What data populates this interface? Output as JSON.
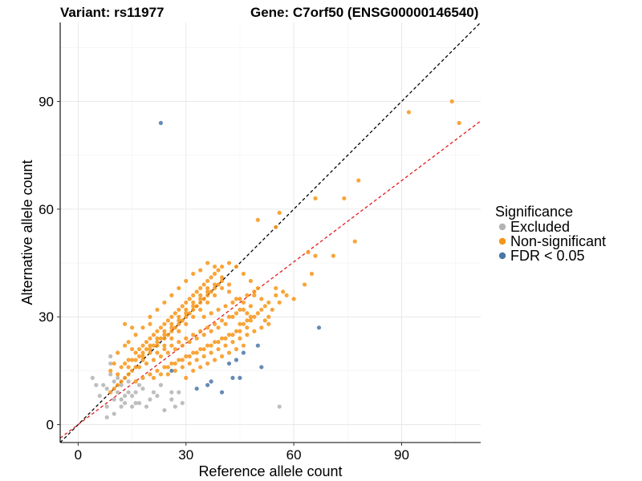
{
  "chart_data": {
    "type": "scatter",
    "variant_title": "Variant: rs11977",
    "gene_title": "Gene: C7orf50 (ENSG00000146540)",
    "xlabel": "Reference allele count",
    "ylabel": "Alternative allele count",
    "xlim": [
      -5,
      112
    ],
    "ylim": [
      -5,
      112
    ],
    "x_ticks": [
      0,
      30,
      60,
      90
    ],
    "y_ticks": [
      0,
      30,
      60,
      90
    ],
    "grid": true,
    "reference_lines": [
      {
        "name": "identity",
        "slope": 1.0,
        "intercept": 0,
        "color": "#000000",
        "style": "dashed"
      },
      {
        "name": "fit",
        "slope": 0.755,
        "intercept": 0,
        "color": "#e31a1c",
        "style": "dashed"
      }
    ],
    "legend": {
      "title": "Significance",
      "placement": "right",
      "entries": [
        {
          "label": "Excluded",
          "color": "#b3b3b3"
        },
        {
          "label": "Non-significant",
          "color": "#f79518"
        },
        {
          "label": "FDR < 0.05",
          "color": "#4a77a8"
        }
      ]
    },
    "series": [
      {
        "name": "Excluded",
        "color": "#b3b3b3",
        "points": [
          [
            4,
            13
          ],
          [
            5,
            11
          ],
          [
            7,
            11
          ],
          [
            8,
            10
          ],
          [
            9,
            14
          ],
          [
            9,
            17
          ],
          [
            9,
            19
          ],
          [
            10,
            12
          ],
          [
            10,
            7
          ],
          [
            8,
            5
          ],
          [
            8,
            2
          ],
          [
            11,
            9
          ],
          [
            11,
            13
          ],
          [
            12,
            11
          ],
          [
            12,
            7
          ],
          [
            13,
            8
          ],
          [
            14,
            9
          ],
          [
            13,
            6
          ],
          [
            15,
            8
          ],
          [
            16,
            9
          ],
          [
            16,
            6
          ],
          [
            18,
            10
          ],
          [
            17,
            6
          ],
          [
            19,
            5
          ],
          [
            20,
            7
          ],
          [
            22,
            8
          ],
          [
            23,
            11
          ],
          [
            24,
            4
          ],
          [
            26,
            7
          ],
          [
            27,
            5
          ],
          [
            28,
            9
          ],
          [
            29,
            6
          ],
          [
            21,
            9
          ],
          [
            14,
            12
          ],
          [
            17,
            11
          ],
          [
            12,
            5
          ],
          [
            15,
            5
          ],
          [
            10,
            3
          ],
          [
            6,
            8
          ],
          [
            56,
            5
          ],
          [
            26,
            9
          ]
        ]
      },
      {
        "name": "Non-significant",
        "color": "#f79518",
        "points": [
          [
            92,
            87
          ],
          [
            104,
            90
          ],
          [
            106,
            84
          ],
          [
            78,
            68
          ],
          [
            74,
            63
          ],
          [
            66,
            63
          ],
          [
            77,
            51
          ],
          [
            56,
            59
          ],
          [
            55,
            55
          ],
          [
            50,
            57
          ],
          [
            64,
            48
          ],
          [
            71,
            47
          ],
          [
            65,
            42
          ],
          [
            66,
            47
          ],
          [
            63,
            39
          ],
          [
            60,
            35
          ],
          [
            58,
            36
          ],
          [
            56,
            34
          ],
          [
            55,
            38
          ],
          [
            54,
            32
          ],
          [
            53,
            30
          ],
          [
            52,
            33
          ],
          [
            51,
            35
          ],
          [
            49,
            36
          ],
          [
            48,
            29
          ],
          [
            47,
            31
          ],
          [
            46,
            28
          ],
          [
            45,
            32
          ],
          [
            44,
            26
          ],
          [
            43,
            30
          ],
          [
            42,
            25
          ],
          [
            41,
            28
          ],
          [
            40,
            24
          ],
          [
            39,
            27
          ],
          [
            38,
            23
          ],
          [
            37,
            26
          ],
          [
            36,
            22
          ],
          [
            35,
            25
          ],
          [
            34,
            21
          ],
          [
            33,
            24
          ],
          [
            32,
            20
          ],
          [
            31,
            23
          ],
          [
            30,
            19
          ],
          [
            29,
            22
          ],
          [
            28,
            18
          ],
          [
            27,
            21
          ],
          [
            26,
            17
          ],
          [
            25,
            20
          ],
          [
            24,
            16
          ],
          [
            23,
            19
          ],
          [
            22,
            15
          ],
          [
            21,
            18
          ],
          [
            20,
            14
          ],
          [
            19,
            17
          ],
          [
            18,
            13
          ],
          [
            17,
            16
          ],
          [
            16,
            12
          ],
          [
            15,
            15
          ],
          [
            14,
            14
          ],
          [
            13,
            13
          ],
          [
            12,
            12
          ],
          [
            11,
            11
          ],
          [
            10,
            10
          ],
          [
            9,
            9
          ],
          [
            12,
            16
          ],
          [
            14,
            18
          ],
          [
            16,
            20
          ],
          [
            18,
            22
          ],
          [
            20,
            24
          ],
          [
            22,
            26
          ],
          [
            24,
            28
          ],
          [
            26,
            30
          ],
          [
            28,
            32
          ],
          [
            30,
            34
          ],
          [
            32,
            36
          ],
          [
            34,
            38
          ],
          [
            36,
            40
          ],
          [
            38,
            42
          ],
          [
            40,
            44
          ],
          [
            42,
            45
          ],
          [
            44,
            44
          ],
          [
            46,
            42
          ],
          [
            48,
            40
          ],
          [
            50,
            38
          ],
          [
            20,
            30
          ],
          [
            22,
            32
          ],
          [
            24,
            34
          ],
          [
            26,
            36
          ],
          [
            28,
            38
          ],
          [
            30,
            40
          ],
          [
            32,
            42
          ],
          [
            34,
            43
          ],
          [
            36,
            45
          ],
          [
            38,
            44
          ],
          [
            40,
            41
          ],
          [
            42,
            39
          ],
          [
            14,
            23
          ],
          [
            16,
            25
          ],
          [
            18,
            27
          ],
          [
            20,
            28
          ],
          [
            15,
            27
          ],
          [
            13,
            28
          ],
          [
            24,
            22
          ],
          [
            26,
            24
          ],
          [
            28,
            26
          ],
          [
            30,
            28
          ],
          [
            32,
            30
          ],
          [
            34,
            32
          ],
          [
            36,
            34
          ],
          [
            38,
            36
          ],
          [
            40,
            38
          ],
          [
            42,
            37
          ],
          [
            44,
            35
          ],
          [
            46,
            34
          ],
          [
            48,
            33
          ],
          [
            50,
            31
          ],
          [
            52,
            29
          ],
          [
            25,
            14
          ],
          [
            27,
            15
          ],
          [
            29,
            16
          ],
          [
            31,
            17
          ],
          [
            33,
            18
          ],
          [
            35,
            19
          ],
          [
            37,
            20
          ],
          [
            39,
            21
          ],
          [
            41,
            22
          ],
          [
            43,
            23
          ],
          [
            45,
            24
          ],
          [
            47,
            25
          ],
          [
            49,
            26
          ],
          [
            51,
            27
          ],
          [
            53,
            28
          ],
          [
            30,
            13
          ],
          [
            32,
            15
          ],
          [
            34,
            16
          ],
          [
            36,
            17
          ],
          [
            38,
            18
          ],
          [
            40,
            19
          ],
          [
            42,
            20
          ],
          [
            44,
            21
          ],
          [
            46,
            22
          ],
          [
            19,
            21
          ],
          [
            21,
            22
          ],
          [
            23,
            24
          ],
          [
            25,
            25
          ],
          [
            27,
            27
          ],
          [
            29,
            29
          ],
          [
            31,
            31
          ],
          [
            33,
            33
          ],
          [
            35,
            35
          ],
          [
            37,
            37
          ],
          [
            39,
            39
          ],
          [
            17,
            19
          ],
          [
            15,
            21
          ],
          [
            13,
            22
          ],
          [
            11,
            20
          ],
          [
            10,
            17
          ],
          [
            9,
            15
          ],
          [
            11,
            14
          ],
          [
            13,
            17
          ],
          [
            15,
            18
          ],
          [
            17,
            21
          ],
          [
            19,
            23
          ],
          [
            21,
            25
          ],
          [
            23,
            27
          ],
          [
            25,
            29
          ],
          [
            27,
            31
          ],
          [
            29,
            33
          ],
          [
            31,
            35
          ],
          [
            33,
            37
          ],
          [
            35,
            39
          ],
          [
            37,
            41
          ],
          [
            39,
            43
          ],
          [
            22,
            20
          ],
          [
            24,
            21
          ],
          [
            26,
            22
          ],
          [
            28,
            23
          ],
          [
            30,
            24
          ],
          [
            32,
            25
          ],
          [
            34,
            26
          ],
          [
            36,
            27
          ],
          [
            38,
            28
          ],
          [
            40,
            29
          ],
          [
            42,
            30
          ],
          [
            44,
            31
          ],
          [
            46,
            32
          ],
          [
            48,
            30
          ],
          [
            21,
            13
          ],
          [
            23,
            14
          ],
          [
            25,
            16
          ],
          [
            27,
            17
          ],
          [
            29,
            18
          ],
          [
            31,
            19
          ],
          [
            33,
            20
          ],
          [
            35,
            21
          ],
          [
            37,
            22
          ],
          [
            39,
            23
          ],
          [
            41,
            24
          ],
          [
            43,
            25
          ],
          [
            45,
            26
          ],
          [
            47,
            27
          ],
          [
            18,
            19
          ],
          [
            20,
            20
          ],
          [
            22,
            22
          ],
          [
            24,
            24
          ],
          [
            26,
            26
          ],
          [
            28,
            28
          ],
          [
            30,
            30
          ],
          [
            32,
            32
          ],
          [
            34,
            34
          ],
          [
            36,
            36
          ],
          [
            38,
            38
          ],
          [
            40,
            40
          ],
          [
            16,
            16
          ],
          [
            18,
            18
          ],
          [
            20,
            21
          ],
          [
            22,
            23
          ],
          [
            24,
            25
          ],
          [
            26,
            27
          ],
          [
            28,
            29
          ],
          [
            30,
            31
          ],
          [
            32,
            33
          ],
          [
            34,
            35
          ],
          [
            36,
            37
          ],
          [
            38,
            39
          ],
          [
            14,
            16
          ],
          [
            16,
            18
          ],
          [
            18,
            20
          ],
          [
            20,
            22
          ],
          [
            22,
            24
          ],
          [
            24,
            26
          ],
          [
            26,
            28
          ],
          [
            28,
            30
          ],
          [
            30,
            32
          ],
          [
            32,
            34
          ],
          [
            34,
            36
          ],
          [
            36,
            38
          ],
          [
            35,
            30
          ],
          [
            37,
            31
          ],
          [
            39,
            32
          ],
          [
            41,
            33
          ],
          [
            43,
            34
          ],
          [
            45,
            35
          ],
          [
            47,
            36
          ],
          [
            49,
            37
          ],
          [
            45,
            28
          ],
          [
            47,
            29
          ],
          [
            49,
            30
          ],
          [
            51,
            32
          ],
          [
            53,
            34
          ],
          [
            55,
            36
          ],
          [
            57,
            37
          ]
        ]
      },
      {
        "name": "FDR < 0.05",
        "color": "#4a77a8",
        "points": [
          [
            23,
            84
          ],
          [
            67,
            27
          ],
          [
            51,
            16
          ],
          [
            50,
            22
          ],
          [
            46,
            20
          ],
          [
            44,
            18
          ],
          [
            45,
            13
          ],
          [
            43,
            13
          ],
          [
            40,
            9
          ],
          [
            37,
            12
          ],
          [
            33,
            10
          ],
          [
            36,
            11
          ],
          [
            42,
            17
          ],
          [
            26,
            15
          ]
        ]
      }
    ]
  }
}
